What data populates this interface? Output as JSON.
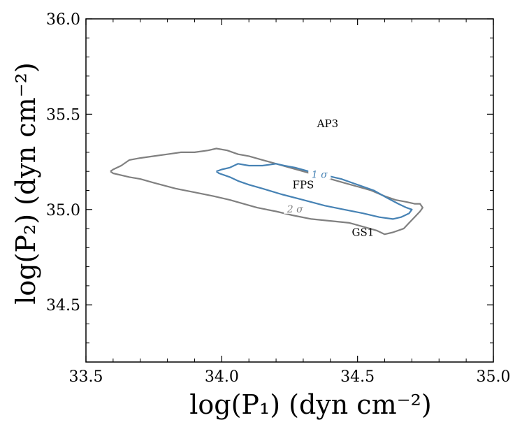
{
  "chart_data": {
    "type": "line",
    "xlabel": "log(P₁) (dyn cm⁻²)",
    "ylabel": "log(P₂) (dyn cm⁻²)",
    "xlim": [
      33.5,
      35.0
    ],
    "ylim": [
      34.2,
      36.0
    ],
    "x_ticks": [
      "33.5",
      "34.0",
      "34.5",
      "35.0"
    ],
    "y_ticks": [
      "34.5",
      "35.0",
      "35.5",
      "36.0"
    ],
    "grid": false,
    "annotations": [
      {
        "text": "AP3",
        "x": 34.39,
        "y": 35.45
      },
      {
        "text": "FPS",
        "x": 34.3,
        "y": 35.13
      },
      {
        "text": "GS1",
        "x": 34.52,
        "y": 34.88
      }
    ],
    "colors": {
      "sigma2": "#808080",
      "sigma1": "#4682b4"
    },
    "series": [
      {
        "name": "",
        "contour_label": "2 σ",
        "label_pos": [
          34.27,
          35.0
        ],
        "x": [
          33.59,
          33.6,
          33.63,
          33.66,
          33.7,
          33.75,
          33.8,
          33.85,
          33.9,
          33.95,
          33.98,
          34.02,
          34.06,
          34.1,
          34.15,
          34.2,
          34.25,
          34.3,
          34.35,
          34.4,
          34.45,
          34.5,
          34.55,
          34.6,
          34.64,
          34.68,
          34.71,
          34.73,
          34.74,
          34.73,
          34.71,
          34.69,
          34.67,
          34.63,
          34.6,
          34.57,
          34.52,
          34.47,
          34.4,
          34.33,
          34.26,
          34.2,
          34.13,
          34.08,
          34.03,
          33.97,
          33.9,
          33.83,
          33.75,
          33.7,
          33.66,
          33.63,
          33.6,
          33.59
        ],
        "y": [
          35.2,
          35.21,
          35.23,
          35.26,
          35.27,
          35.28,
          35.29,
          35.3,
          35.3,
          35.31,
          35.32,
          35.31,
          35.29,
          35.28,
          35.26,
          35.24,
          35.22,
          35.2,
          35.18,
          35.16,
          35.14,
          35.12,
          35.1,
          35.07,
          35.05,
          35.04,
          35.03,
          35.03,
          35.01,
          34.99,
          34.96,
          34.93,
          34.9,
          34.88,
          34.87,
          34.89,
          34.91,
          34.93,
          34.94,
          34.95,
          34.97,
          34.99,
          35.01,
          35.03,
          35.05,
          35.07,
          35.09,
          35.11,
          35.14,
          35.16,
          35.17,
          35.18,
          35.19,
          35.2
        ]
      },
      {
        "name": "",
        "contour_label": "1 σ",
        "label_pos": [
          34.36,
          35.18
        ],
        "x": [
          33.98,
          34.0,
          34.03,
          34.06,
          34.1,
          34.15,
          34.2,
          34.23,
          34.27,
          34.32,
          34.38,
          34.44,
          34.5,
          34.56,
          34.61,
          34.65,
          34.68,
          34.7,
          34.69,
          34.66,
          34.63,
          34.58,
          34.52,
          34.45,
          34.38,
          34.3,
          34.22,
          34.15,
          34.1,
          34.06,
          34.03,
          34.01,
          33.99,
          33.98
        ],
        "y": [
          35.2,
          35.21,
          35.22,
          35.24,
          35.23,
          35.23,
          35.24,
          35.23,
          35.22,
          35.2,
          35.18,
          35.16,
          35.13,
          35.1,
          35.06,
          35.03,
          35.01,
          35.0,
          34.98,
          34.96,
          34.95,
          34.96,
          34.98,
          35.0,
          35.02,
          35.05,
          35.08,
          35.11,
          35.13,
          35.15,
          35.17,
          35.18,
          35.19,
          35.2
        ]
      }
    ]
  }
}
